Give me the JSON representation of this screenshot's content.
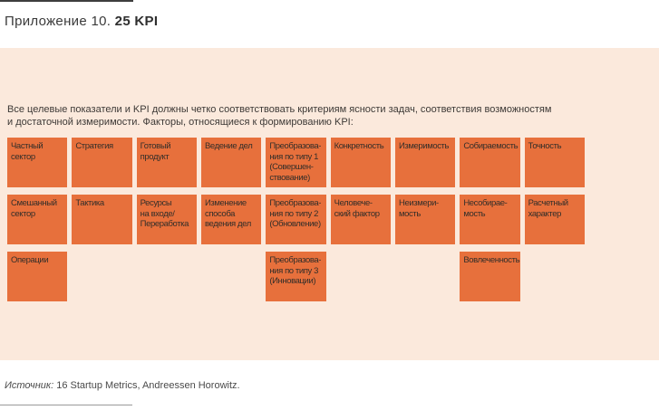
{
  "page": {
    "title_prefix": "Приложение 10. ",
    "title_bold": "25 KPI"
  },
  "panel": {
    "intro": "Все целевые показатели и KPI должны четко соответствовать критериям ясности задач, соответствия возможностям\nи достаточной измеримости. Факторы, относящиеся к формированию KPI:"
  },
  "grid": {
    "cells": [
      {
        "row": 1,
        "col": 1,
        "label": "Частный\nсектор"
      },
      {
        "row": 1,
        "col": 2,
        "label": "Стратегия"
      },
      {
        "row": 1,
        "col": 3,
        "label": "Готовый\nпродукт"
      },
      {
        "row": 1,
        "col": 4,
        "label": "Ведение дел"
      },
      {
        "row": 1,
        "col": 5,
        "label": "Преобразова-\nния по типу 1\n(Совершен-\nствование)"
      },
      {
        "row": 1,
        "col": 6,
        "label": "Конкретность"
      },
      {
        "row": 1,
        "col": 7,
        "label": "Измеримость"
      },
      {
        "row": 1,
        "col": 8,
        "label": "Собираемость"
      },
      {
        "row": 1,
        "col": 9,
        "label": "Точность"
      },
      {
        "row": 2,
        "col": 1,
        "label": "Смешанный\nсектор"
      },
      {
        "row": 2,
        "col": 2,
        "label": "Тактика"
      },
      {
        "row": 2,
        "col": 3,
        "label": "Ресурсы\nна входе/\nПереработка"
      },
      {
        "row": 2,
        "col": 4,
        "label": "Изменение\nспособа\nведения дел"
      },
      {
        "row": 2,
        "col": 5,
        "label": "Преобразова-\nния по типу 2\n(Обновление)"
      },
      {
        "row": 2,
        "col": 6,
        "label": "Человече-\nский фактор"
      },
      {
        "row": 2,
        "col": 7,
        "label": "Неизмери-\nмость"
      },
      {
        "row": 2,
        "col": 8,
        "label": "Несобирае-\nмость"
      },
      {
        "row": 2,
        "col": 9,
        "label": "Расчетный\nхарактер"
      },
      {
        "row": 3,
        "col": 1,
        "label": "Операции"
      },
      {
        "row": 3,
        "col": 5,
        "label": "Преобразова-\nния по типу 3\n(Инновации)"
      },
      {
        "row": 3,
        "col": 8,
        "label": "Вовлеченность"
      }
    ]
  },
  "footer": {
    "source_label": "Источник:",
    "source_text": " 16 Startup Metrics, Andreessen Horowitz."
  },
  "colors": {
    "box_orange": "#e7703c",
    "panel_peach": "#fbe9dc",
    "rule_dark": "#3e3e3e",
    "rule_gray": "#9a9a9a"
  }
}
